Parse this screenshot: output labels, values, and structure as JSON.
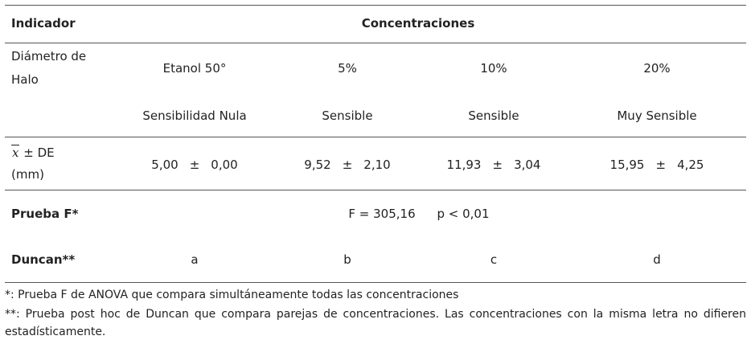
{
  "header": {
    "indicator": "Indicador",
    "concentrations": "Concentraciones"
  },
  "diameter": {
    "label": "Diámetro de Halo",
    "groups": [
      "Etanol 50°",
      "5%",
      "10%",
      "20%"
    ],
    "sensitivity": [
      "Sensibilidad Nula",
      "Sensible",
      "Sensible",
      "Muy Sensible"
    ]
  },
  "mean": {
    "symbol": "x",
    "label": "± DE",
    "unit": "(mm)",
    "pm": "±",
    "values": [
      "5,00",
      "9,52",
      "11,93",
      "15,95"
    ],
    "sd": [
      "0,00",
      "2,10",
      "3,04",
      "4,25"
    ]
  },
  "f_test": {
    "label": "Prueba F*",
    "f": "F = 305,16",
    "p": "p < 0,01"
  },
  "duncan": {
    "label": "Duncan**",
    "groups": [
      "a",
      "b",
      "c",
      "d"
    ]
  },
  "footnotes": [
    "*: Prueba F de ANOVA que compara simultáneamente todas las concentraciones",
    "**: Prueba post hoc de Duncan que compara parejas de concentraciones. Las concentraciones con la misma letra no difieren estadísticamente."
  ]
}
